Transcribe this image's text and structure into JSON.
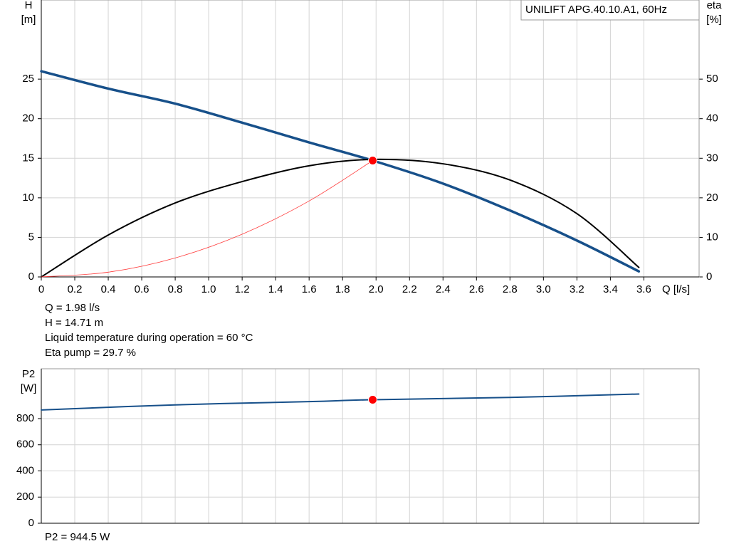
{
  "chart_data": [
    {
      "type": "line",
      "model": "UNILIFT APG.40.10.A1, 60Hz",
      "ylabel": [
        "H",
        "[m]"
      ],
      "y2label": [
        "eta",
        "[%]"
      ],
      "xlabel": "Q [l/s]",
      "xlim": [
        0,
        3.93
      ],
      "xticks": [
        0,
        0.2,
        0.4,
        0.6,
        0.8,
        {
          "value": 1,
          "label": "1.0"
        },
        1.2,
        1.4,
        1.6,
        1.8,
        {
          "value": 2,
          "label": "2.0"
        },
        2.2,
        2.4,
        2.6,
        2.8,
        {
          "value": 3,
          "label": "3.0"
        },
        3.2,
        3.4,
        3.6
      ],
      "ylim": [
        0,
        35
      ],
      "yticks": [
        0,
        5,
        10,
        15,
        20,
        25
      ],
      "y2lim": [
        0,
        70
      ],
      "y2ticks": [
        0,
        10,
        20,
        30,
        40,
        50
      ],
      "grid": true,
      "series": [
        {
          "color": "#17508a",
          "width": 3.5,
          "x": [
            0,
            0.4,
            0.8,
            1.2,
            1.6,
            1.98,
            2.4,
            2.8,
            3.2,
            3.57
          ],
          "values": [
            26,
            23.8,
            21.9,
            19.5,
            17.0,
            14.71,
            11.8,
            8.4,
            4.6,
            0.7
          ]
        },
        {
          "color": "#000000",
          "width": 2,
          "axis": "y2",
          "x": [
            0,
            0.4,
            0.8,
            1.2,
            1.6,
            1.98,
            2.4,
            2.8,
            3.2,
            3.57
          ],
          "values": [
            0,
            10.6,
            18.7,
            24.1,
            28.1,
            29.7,
            28.6,
            24.5,
            16,
            2.4
          ]
        },
        {
          "color": "#ff3b3b",
          "width": 0.8,
          "x": [
            0,
            0.4,
            0.8,
            1.2,
            1.6,
            1.98
          ],
          "values": [
            0,
            0.6,
            2.4,
            5.4,
            9.6,
            14.71
          ]
        }
      ],
      "operating_point": {
        "x": 1.98,
        "y": 14.71,
        "color": "#ff0000"
      },
      "notes": [
        "Q = 1.98 l/s",
        "H = 14.71 m",
        "Liquid temperature during operation = 60 °C",
        "Eta pump = 29.7 %"
      ]
    },
    {
      "type": "line",
      "ylabel": [
        "P2",
        "[W]"
      ],
      "xlim": [
        0,
        3.93
      ],
      "xticks": [
        0,
        0.2,
        0.4,
        0.6,
        0.8,
        1,
        1.2,
        1.4,
        1.6,
        1.8,
        2,
        2.2,
        2.4,
        2.6,
        2.8,
        3,
        3.2,
        3.4,
        3.6
      ],
      "ylim": [
        0,
        1181
      ],
      "yticks": [
        0,
        200,
        400,
        600,
        800
      ],
      "grid": true,
      "series": [
        {
          "color": "#17508a",
          "width": 2,
          "x": [
            0,
            0.8,
            1.6,
            1.98,
            2.8,
            3.57
          ],
          "values": [
            866,
            905,
            930,
            944.5,
            962,
            988
          ]
        }
      ],
      "operating_point": {
        "x": 1.98,
        "y": 944.5,
        "color": "#ff0000"
      },
      "notes": [
        "P2 = 944.5 W"
      ]
    }
  ]
}
